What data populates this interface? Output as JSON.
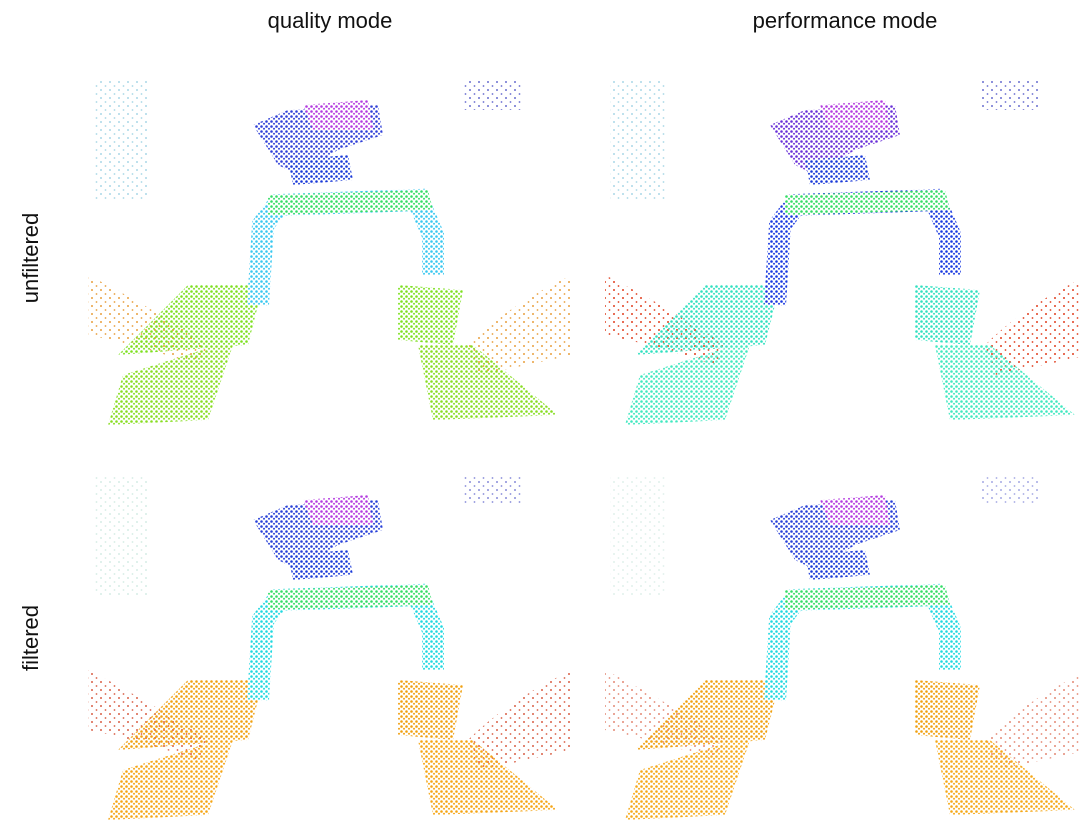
{
  "columns": [
    "quality mode",
    "performance mode"
  ],
  "rows": [
    "unfiltered",
    "filtered"
  ]
}
